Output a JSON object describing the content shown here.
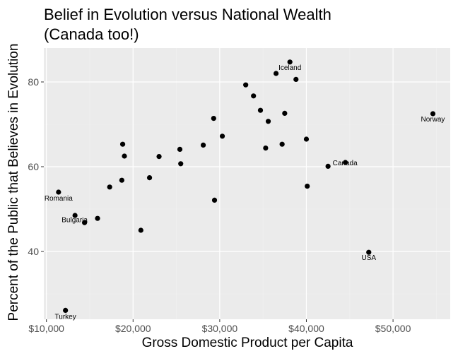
{
  "chart_data": {
    "type": "scatter",
    "title": "Belief in Evolution versus National Wealth",
    "subtitle": "(Canada too!)",
    "xlabel": "Gross Domestic Product per Capita",
    "ylabel": "Percent of the Public that Believes in Evolution",
    "xlim": [
      9700,
      56600
    ],
    "ylim": [
      24,
      88
    ],
    "x_ticks": [
      {
        "value": 10000,
        "label": "$10,000"
      },
      {
        "value": 20000,
        "label": "$20,000"
      },
      {
        "value": 30000,
        "label": "$30,000"
      },
      {
        "value": 40000,
        "label": "$40,000"
      },
      {
        "value": 50000,
        "label": "$50,000"
      }
    ],
    "y_ticks": [
      {
        "value": 40,
        "label": "40"
      },
      {
        "value": 60,
        "label": "60"
      },
      {
        "value": 80,
        "label": "80"
      }
    ],
    "grid": true,
    "colors": {
      "panel": "#ebebeb",
      "grid_major": "#ffffff",
      "grid_minor": "#f2f2f2",
      "point": "#000000"
    },
    "points": [
      {
        "x": 11400,
        "y": 54.0,
        "label": "Romania"
      },
      {
        "x": 12200,
        "y": 26.1,
        "label": "Turkey"
      },
      {
        "x": 13300,
        "y": 48.5,
        "label": ""
      },
      {
        "x": 14400,
        "y": 46.8,
        "label": "Bulgaria"
      },
      {
        "x": 15900,
        "y": 47.8,
        "label": ""
      },
      {
        "x": 17300,
        "y": 55.2,
        "label": ""
      },
      {
        "x": 18700,
        "y": 56.8,
        "label": ""
      },
      {
        "x": 18800,
        "y": 65.3,
        "label": ""
      },
      {
        "x": 19000,
        "y": 62.5,
        "label": ""
      },
      {
        "x": 20900,
        "y": 45.0,
        "label": ""
      },
      {
        "x": 21900,
        "y": 57.4,
        "label": ""
      },
      {
        "x": 23000,
        "y": 62.4,
        "label": ""
      },
      {
        "x": 25400,
        "y": 64.1,
        "label": ""
      },
      {
        "x": 25500,
        "y": 60.7,
        "label": ""
      },
      {
        "x": 28100,
        "y": 65.1,
        "label": ""
      },
      {
        "x": 29300,
        "y": 71.4,
        "label": ""
      },
      {
        "x": 29400,
        "y": 52.1,
        "label": ""
      },
      {
        "x": 30300,
        "y": 67.2,
        "label": ""
      },
      {
        "x": 33000,
        "y": 79.3,
        "label": ""
      },
      {
        "x": 33900,
        "y": 76.7,
        "label": ""
      },
      {
        "x": 34700,
        "y": 73.3,
        "label": ""
      },
      {
        "x": 35300,
        "y": 64.4,
        "label": ""
      },
      {
        "x": 35600,
        "y": 70.7,
        "label": ""
      },
      {
        "x": 36500,
        "y": 82.0,
        "label": ""
      },
      {
        "x": 37200,
        "y": 65.3,
        "label": ""
      },
      {
        "x": 37500,
        "y": 72.6,
        "label": ""
      },
      {
        "x": 38100,
        "y": 84.7,
        "label": "Iceland"
      },
      {
        "x": 38800,
        "y": 80.6,
        "label": ""
      },
      {
        "x": 40000,
        "y": 66.5,
        "label": ""
      },
      {
        "x": 40100,
        "y": 55.4,
        "label": ""
      },
      {
        "x": 42500,
        "y": 60.1,
        "label": ""
      },
      {
        "x": 44500,
        "y": 61.0,
        "label": "Canada"
      },
      {
        "x": 47200,
        "y": 39.8,
        "label": "USA"
      },
      {
        "x": 54600,
        "y": 72.5,
        "label": "Norway"
      }
    ]
  }
}
